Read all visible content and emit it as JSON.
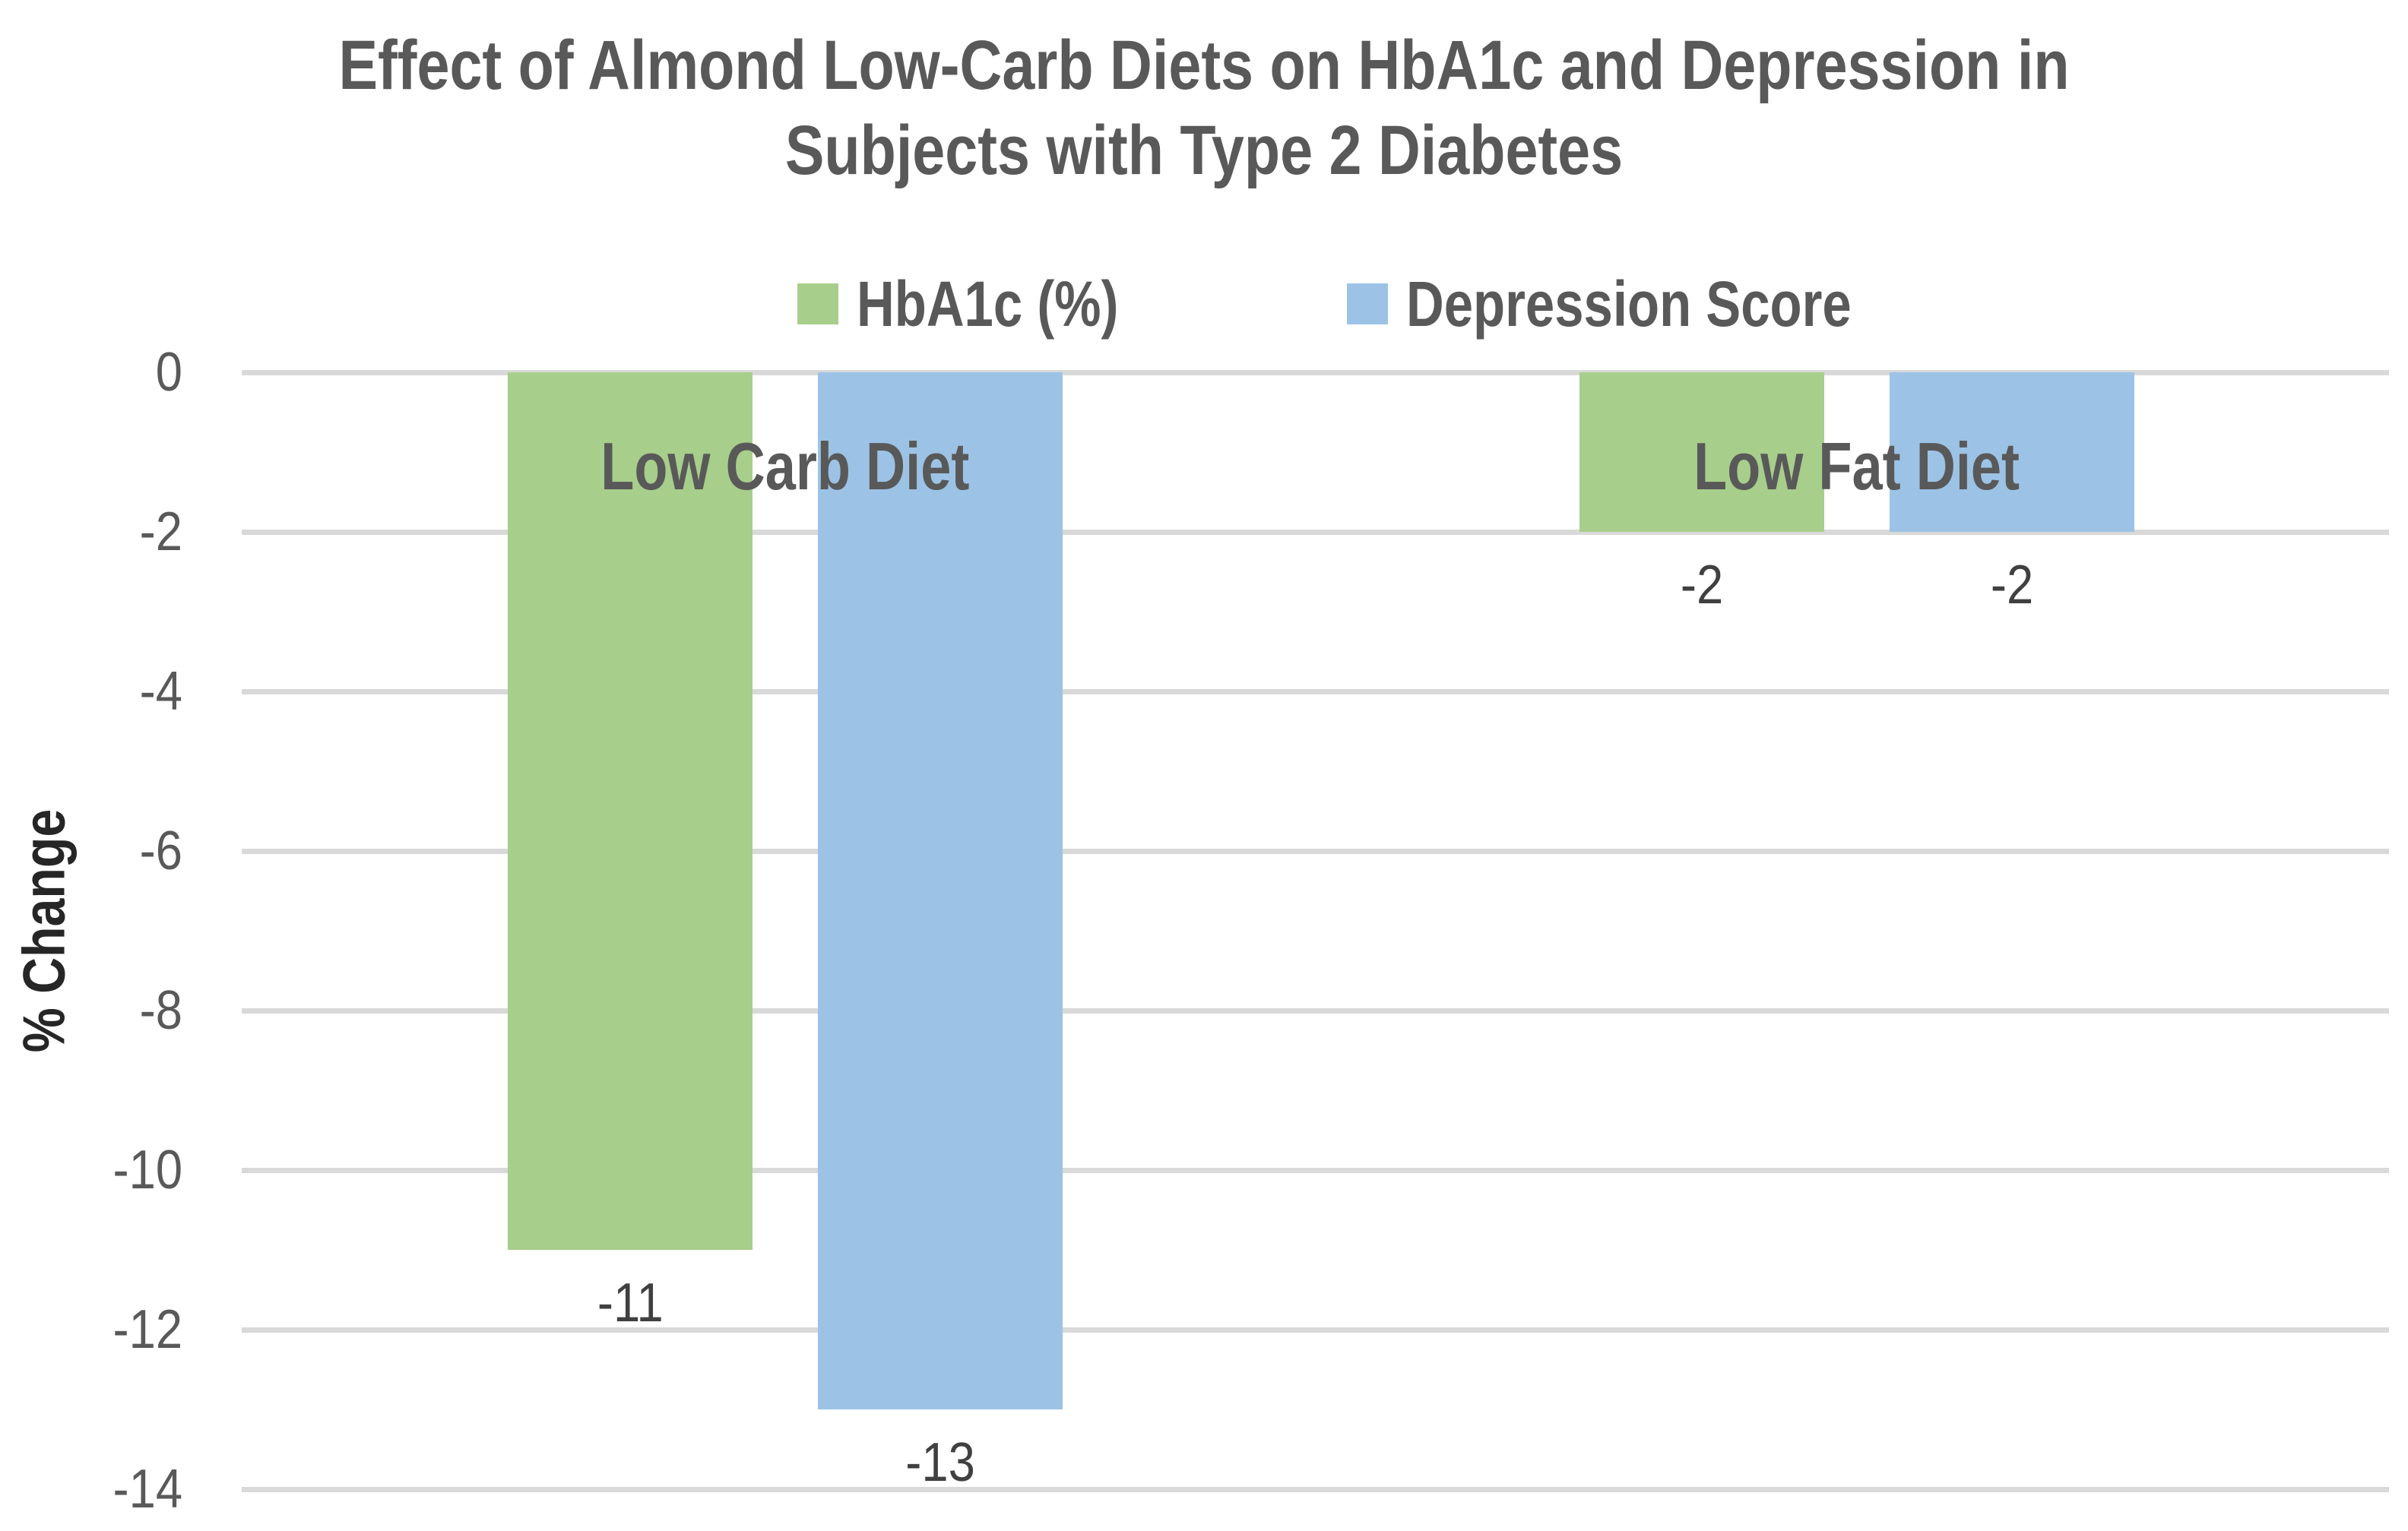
{
  "title": {
    "line1": "Effect of Almond Low-Carb Diets on HbA1c and Depression in",
    "line2": "Subjects with Type 2 Diabetes"
  },
  "legend": {
    "items": [
      {
        "label": "HbA1c (%)",
        "color": "#A7CE8B"
      },
      {
        "label": "Depression Score",
        "color": "#9CC3E5"
      }
    ]
  },
  "y_axis": {
    "label": "% Change",
    "ticks": [
      0,
      -2,
      -4,
      -6,
      -8,
      -10,
      -12,
      -14
    ]
  },
  "chart_data": {
    "type": "bar",
    "title": "Effect of Almond Low-Carb Diets on HbA1c and Depression in Subjects with Type 2 Diabetes",
    "categories": [
      "Low Carb Diet",
      "Low Fat Diet"
    ],
    "series": [
      {
        "name": "HbA1c (%)",
        "color": "#A7CE8B",
        "values": [
          -11,
          -2
        ]
      },
      {
        "name": "Depression Score",
        "color": "#9CC3E5",
        "values": [
          -13,
          -2
        ]
      }
    ],
    "xlabel": "",
    "ylabel": "% Change",
    "ylim": [
      -14,
      0
    ],
    "yticks": [
      0,
      -2,
      -4,
      -6,
      -8,
      -10,
      -12,
      -14
    ],
    "grid": true,
    "legend_position": "top",
    "data_labels_visible": true,
    "colors": {
      "grid": "#D9D9D9",
      "tick_text": "#595959",
      "title_text": "#595959",
      "category_text": "#595959",
      "data_label_text": "#404040",
      "axis_label_text": "#262626",
      "background": "#ffffff"
    }
  }
}
